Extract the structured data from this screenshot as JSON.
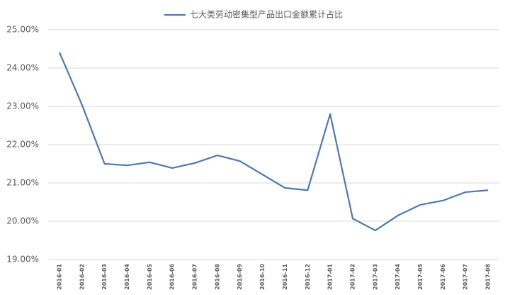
{
  "chart_data": {
    "type": "line",
    "categories": [
      "2016-01",
      "2016-02",
      "2016-03",
      "2016-04",
      "2016-05",
      "2016-06",
      "2016-07",
      "2016-08",
      "2016-09",
      "2016-10",
      "2016-11",
      "2016-12",
      "2017-01",
      "2017-02",
      "2017-03",
      "2017-04",
      "2017-05",
      "2017-06",
      "2017-07",
      "2017-08"
    ],
    "series": [
      {
        "name": "七大类劳动密集型产品出口金额累计占比",
        "color": "#4f79ad",
        "values": [
          24.41,
          23.04,
          21.5,
          21.46,
          21.54,
          21.39,
          21.52,
          21.72,
          21.57,
          21.22,
          20.87,
          20.81,
          22.8,
          20.07,
          19.76,
          20.15,
          20.43,
          20.54,
          20.76,
          20.81
        ]
      }
    ],
    "ylim": [
      19,
      25
    ],
    "yticks": [
      {
        "value": 19,
        "label": "19.00%"
      },
      {
        "value": 20,
        "label": "20.00%"
      },
      {
        "value": 21,
        "label": "21.00%"
      },
      {
        "value": 22,
        "label": "22.00%"
      },
      {
        "value": 23,
        "label": "23.00%"
      },
      {
        "value": 24,
        "label": "24.00%"
      },
      {
        "value": 25,
        "label": "25.00%"
      }
    ],
    "grid": true,
    "legend": "top"
  }
}
